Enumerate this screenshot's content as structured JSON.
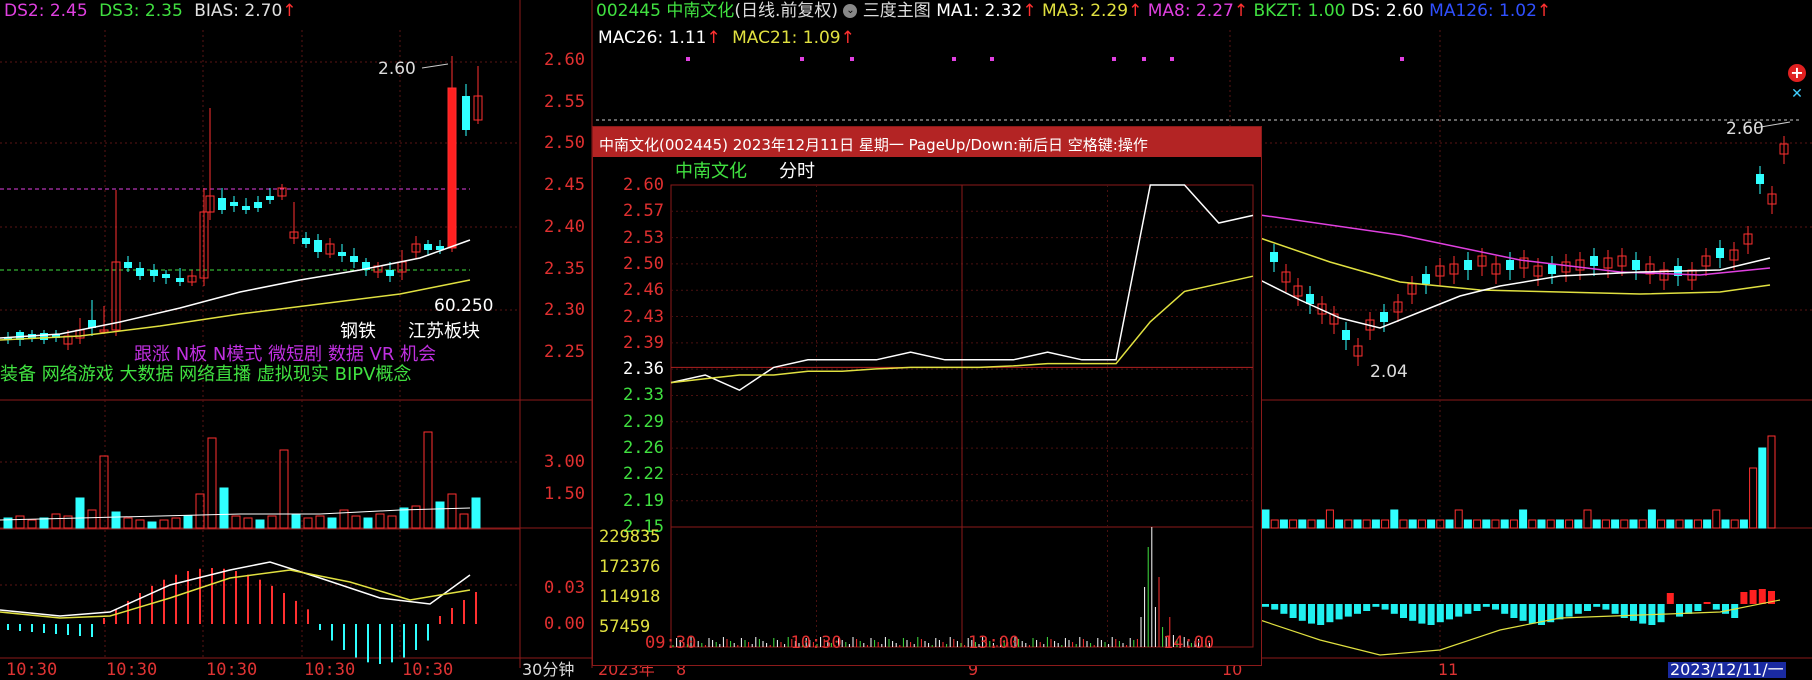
{
  "left_header": {
    "indicators": [
      {
        "label": "DS2: 2.45",
        "color": "#e040e0"
      },
      {
        "label": "DS3: 2.35",
        "color": "#40e040"
      },
      {
        "label": "BIAS: 2.70",
        "color": "#e0e0e0"
      }
    ],
    "up_arrow": "↑"
  },
  "left_chart": {
    "high_label": "2.60",
    "price_label": "60.250",
    "sector_labels": [
      "钢铁",
      "江苏板块"
    ],
    "concept_line1": "跟涨 N板 N模式 微短剧 数据 VR 机会",
    "concept_line2": "装备 网络游戏 大数据 网络直播 虚拟现实 BIPV概念",
    "x_ticks": [
      "10:30",
      "10:30",
      "10:30",
      "10:30",
      "10:30"
    ],
    "period_label": "30分钟"
  },
  "price_axis": [
    "2.60",
    "2.55",
    "2.50",
    "2.45",
    "2.40",
    "2.35",
    "2.30",
    "2.25"
  ],
  "volume_axis": [
    "3.00",
    "1.50"
  ],
  "macd_axis": [
    "0.03",
    "0.00"
  ],
  "main_header": {
    "code": "002445",
    "name": "中南文化",
    "mode": "(日线.前复权)",
    "menu": "三度主图",
    "ma_values": [
      {
        "label": "MA1: 2.32",
        "color": "#ffffff"
      },
      {
        "label": "MA3: 2.29",
        "color": "#e0e040"
      },
      {
        "label": "MA8: 2.27",
        "color": "#e040e0"
      },
      {
        "label": "BKZT: 1.00",
        "color": "#40e040"
      },
      {
        "label": "DS: 2.60",
        "color": "#ffffff"
      },
      {
        "label": "MA126: 1.02",
        "color": "#3050ff"
      },
      {
        "label": "MAC26: 1.11",
        "color": "#ffffff"
      },
      {
        "label": "MAC21: 1.09",
        "color": "#e0e040"
      }
    ],
    "up_arrow": "↑"
  },
  "main_chart": {
    "high_label": "2.60",
    "low_label": "2.04",
    "x_ticks": [
      "2023年",
      "8",
      "9",
      "10",
      "11",
      "2023/12/11/一"
    ]
  },
  "popup": {
    "title": "中南文化(002445) 2023年12月11日 星期一 PageUp/Down:前后日 空格键:操作",
    "stock_name": "中南文化",
    "chart_label": "分时",
    "price_ticks": [
      "2.60",
      "2.57",
      "2.53",
      "2.50",
      "2.46",
      "2.43",
      "2.39",
      "2.36",
      "2.33",
      "2.29",
      "2.26",
      "2.22",
      "2.19",
      "2.15"
    ],
    "volume_ticks": [
      "229835",
      "172376",
      "114918",
      "57459"
    ],
    "time_ticks": [
      "09:30",
      "10:30",
      "13:00",
      "14:00"
    ],
    "prev_close": 2.36,
    "ylim": [
      2.15,
      2.6
    ],
    "chart_data": {
      "type": "line",
      "x": [
        "09:30",
        "09:45",
        "10:00",
        "10:15",
        "10:30",
        "10:45",
        "11:00",
        "11:15",
        "11:30",
        "13:00",
        "13:15",
        "13:30",
        "13:45",
        "14:00",
        "14:05",
        "14:10",
        "14:15",
        "14:20"
      ],
      "series": [
        {
          "name": "中南文化",
          "values": [
            2.34,
            2.35,
            2.33,
            2.36,
            2.37,
            2.37,
            2.37,
            2.38,
            2.37,
            2.37,
            2.37,
            2.38,
            2.37,
            2.37,
            2.6,
            2.6,
            2.55,
            2.56
          ]
        },
        {
          "values": [
            2.34,
            2.345,
            2.35,
            2.35,
            2.355,
            2.355,
            2.358,
            2.36,
            2.36,
            2.36,
            2.362,
            2.365,
            2.365,
            2.365,
            2.42,
            2.46,
            2.47,
            2.48
          ]
        }
      ]
    }
  }
}
